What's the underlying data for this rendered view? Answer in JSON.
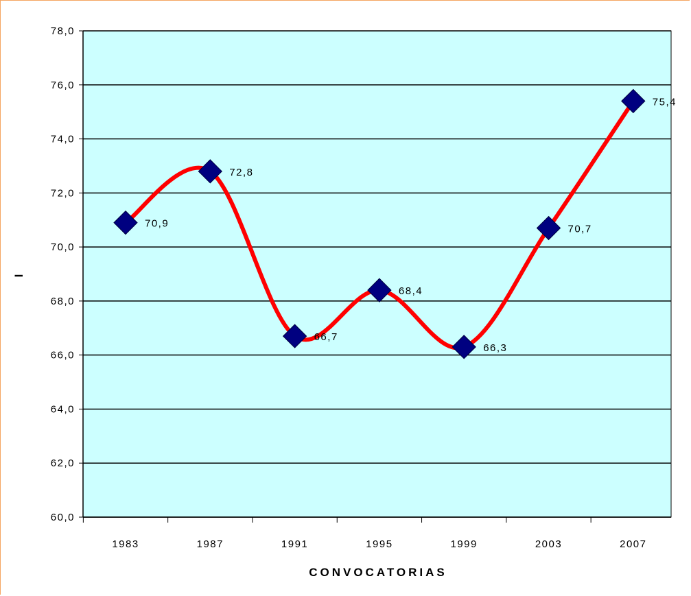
{
  "chart_data": {
    "type": "line",
    "xlabel": "CONVOCATORIAS",
    "ylabel": "I",
    "ylim": [
      60,
      78
    ],
    "yticks": [
      "60,0",
      "62,0",
      "64,0",
      "66,0",
      "68,0",
      "70,0",
      "72,0",
      "74,0",
      "76,0",
      "78,0"
    ],
    "categories": [
      "1983",
      "1987",
      "1991",
      "1995",
      "1999",
      "2003",
      "2007"
    ],
    "series": [
      {
        "values": [
          70.9,
          72.8,
          66.7,
          68.4,
          66.3,
          70.7,
          75.4
        ],
        "labels": [
          "70,9",
          "72,8",
          "66,7",
          "68,4",
          "66,3",
          "70,7",
          "75,4"
        ],
        "line_color": "#ff0000",
        "marker_color": "#000080"
      }
    ],
    "plot_background": "#ccffff",
    "grid": true,
    "legend": "none"
  }
}
